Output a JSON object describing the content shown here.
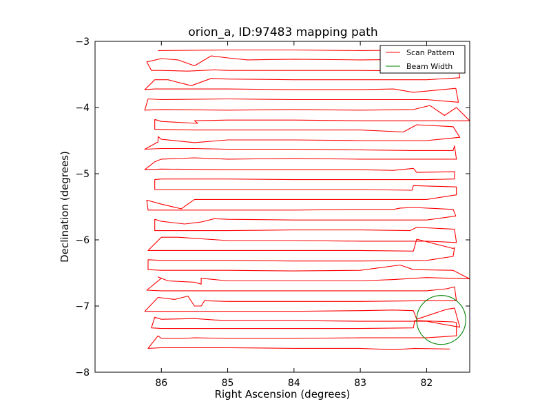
{
  "chart_data": {
    "type": "line",
    "title": "orion_a, ID:97483 mapping path",
    "xlabel": "Right Ascension (degrees)",
    "ylabel": "Declination (degrees)",
    "xlim": [
      87.0,
      81.35
    ],
    "ylim": [
      -8.0,
      -3.0
    ],
    "x_inverted": true,
    "xticks": [
      86,
      85,
      84,
      83,
      82
    ],
    "yticks": [
      -3,
      -4,
      -5,
      -6,
      -7,
      -8
    ],
    "xtick_labels": [
      "86",
      "85",
      "84",
      "83",
      "82"
    ],
    "ytick_labels": [
      "−3",
      "−4",
      "−5",
      "−6",
      "−7",
      "−8"
    ],
    "grid": false,
    "legend": {
      "location": "top-right",
      "entries": [
        {
          "label": "Scan Pattern",
          "color": "#ff0000"
        },
        {
          "label": "Beam Width",
          "color": "#008000"
        }
      ]
    },
    "series": [
      {
        "name": "Scan Pattern",
        "color": "#ff0000",
        "points": [
          [
            86.05,
            -3.14
          ],
          [
            85.0,
            -3.13
          ],
          [
            84.0,
            -3.13
          ],
          [
            83.0,
            -3.14
          ],
          [
            82.0,
            -3.13
          ],
          [
            81.6,
            -3.12
          ],
          [
            81.55,
            -3.2
          ],
          [
            82.0,
            -3.27
          ],
          [
            83.0,
            -3.28
          ],
          [
            84.0,
            -3.27
          ],
          [
            84.7,
            -3.28
          ],
          [
            85.0,
            -3.25
          ],
          [
            85.25,
            -3.22
          ],
          [
            85.5,
            -3.37
          ],
          [
            85.75,
            -3.28
          ],
          [
            86.0,
            -3.26
          ],
          [
            86.22,
            -3.31
          ],
          [
            86.15,
            -3.44
          ],
          [
            86.0,
            -3.44
          ],
          [
            85.6,
            -3.45
          ],
          [
            85.2,
            -3.43
          ],
          [
            85.0,
            -3.44
          ],
          [
            84.0,
            -3.44
          ],
          [
            83.0,
            -3.44
          ],
          [
            82.0,
            -3.45
          ],
          [
            81.52,
            -3.43
          ],
          [
            81.5,
            -3.55
          ],
          [
            82.0,
            -3.58
          ],
          [
            83.0,
            -3.58
          ],
          [
            84.0,
            -3.58
          ],
          [
            85.0,
            -3.57
          ],
          [
            85.25,
            -3.56
          ],
          [
            85.55,
            -3.67
          ],
          [
            85.9,
            -3.58
          ],
          [
            86.1,
            -3.58
          ],
          [
            86.25,
            -3.73
          ],
          [
            86.1,
            -3.72
          ],
          [
            85.0,
            -3.72
          ],
          [
            84.0,
            -3.73
          ],
          [
            83.0,
            -3.73
          ],
          [
            82.5,
            -3.72
          ],
          [
            82.2,
            -3.77
          ],
          [
            81.56,
            -3.71
          ],
          [
            81.52,
            -3.92
          ],
          [
            82.0,
            -3.88
          ],
          [
            83.0,
            -3.88
          ],
          [
            84.0,
            -3.88
          ],
          [
            85.0,
            -3.87
          ],
          [
            86.0,
            -3.88
          ],
          [
            86.2,
            -3.87
          ],
          [
            86.25,
            -4.04
          ],
          [
            86.0,
            -4.03
          ],
          [
            85.0,
            -4.04
          ],
          [
            84.0,
            -4.03
          ],
          [
            83.0,
            -4.04
          ],
          [
            82.2,
            -4.03
          ],
          [
            81.95,
            -3.97
          ],
          [
            81.73,
            -4.12
          ],
          [
            81.55,
            -4.0
          ],
          [
            81.35,
            -4.2
          ],
          [
            82.0,
            -4.2
          ],
          [
            83.0,
            -4.2
          ],
          [
            84.0,
            -4.19
          ],
          [
            85.0,
            -4.19
          ],
          [
            85.5,
            -4.2
          ],
          [
            85.45,
            -4.24
          ],
          [
            86.0,
            -4.21
          ],
          [
            86.1,
            -4.18
          ],
          [
            86.1,
            -4.33
          ],
          [
            85.5,
            -4.34
          ],
          [
            84.0,
            -4.34
          ],
          [
            83.0,
            -4.34
          ],
          [
            82.35,
            -4.37
          ],
          [
            82.15,
            -4.26
          ],
          [
            81.6,
            -4.29
          ],
          [
            81.5,
            -4.45
          ],
          [
            82.0,
            -4.5
          ],
          [
            83.0,
            -4.5
          ],
          [
            84.0,
            -4.49
          ],
          [
            85.0,
            -4.49
          ],
          [
            85.5,
            -4.53
          ],
          [
            86.0,
            -4.48
          ],
          [
            86.05,
            -4.44
          ],
          [
            86.05,
            -4.52
          ],
          [
            86.25,
            -4.63
          ],
          [
            86.0,
            -4.62
          ],
          [
            85.5,
            -4.62
          ],
          [
            85.0,
            -4.63
          ],
          [
            84.0,
            -4.63
          ],
          [
            83.0,
            -4.64
          ],
          [
            82.2,
            -4.65
          ],
          [
            81.6,
            -4.65
          ],
          [
            81.58,
            -4.58
          ],
          [
            81.55,
            -4.78
          ],
          [
            82.0,
            -4.78
          ],
          [
            83.0,
            -4.78
          ],
          [
            84.0,
            -4.77
          ],
          [
            85.0,
            -4.78
          ],
          [
            85.5,
            -4.76
          ],
          [
            86.0,
            -4.78
          ],
          [
            86.1,
            -4.82
          ],
          [
            86.25,
            -4.94
          ],
          [
            86.0,
            -4.93
          ],
          [
            85.0,
            -4.94
          ],
          [
            84.0,
            -4.94
          ],
          [
            83.0,
            -4.94
          ],
          [
            82.5,
            -4.95
          ],
          [
            82.2,
            -4.92
          ],
          [
            82.15,
            -4.98
          ],
          [
            81.58,
            -4.97
          ],
          [
            81.58,
            -5.08
          ],
          [
            82.0,
            -5.09
          ],
          [
            83.0,
            -5.09
          ],
          [
            84.0,
            -5.09
          ],
          [
            85.0,
            -5.08
          ],
          [
            86.0,
            -5.08
          ],
          [
            86.1,
            -5.09
          ],
          [
            86.1,
            -5.24
          ],
          [
            86.0,
            -5.24
          ],
          [
            85.0,
            -5.24
          ],
          [
            84.0,
            -5.24
          ],
          [
            83.0,
            -5.24
          ],
          [
            82.22,
            -5.25
          ],
          [
            82.2,
            -5.18
          ],
          [
            81.55,
            -5.2
          ],
          [
            81.55,
            -5.32
          ],
          [
            82.0,
            -5.39
          ],
          [
            83.0,
            -5.39
          ],
          [
            84.0,
            -5.39
          ],
          [
            85.0,
            -5.39
          ],
          [
            85.5,
            -5.39
          ],
          [
            85.7,
            -5.53
          ],
          [
            86.0,
            -5.46
          ],
          [
            86.22,
            -5.4
          ],
          [
            86.2,
            -5.55
          ],
          [
            86.0,
            -5.55
          ],
          [
            85.0,
            -5.55
          ],
          [
            84.0,
            -5.55
          ],
          [
            83.0,
            -5.54
          ],
          [
            82.5,
            -5.54
          ],
          [
            82.4,
            -5.52
          ],
          [
            82.2,
            -5.51
          ],
          [
            81.6,
            -5.54
          ],
          [
            81.56,
            -5.64
          ],
          [
            82.0,
            -5.7
          ],
          [
            83.0,
            -5.7
          ],
          [
            84.0,
            -5.7
          ],
          [
            85.0,
            -5.69
          ],
          [
            85.2,
            -5.68
          ],
          [
            85.4,
            -5.73
          ],
          [
            85.65,
            -5.76
          ],
          [
            86.0,
            -5.72
          ],
          [
            86.1,
            -5.69
          ],
          [
            86.1,
            -5.86
          ],
          [
            86.0,
            -5.86
          ],
          [
            85.0,
            -5.86
          ],
          [
            84.0,
            -5.85
          ],
          [
            83.0,
            -5.85
          ],
          [
            82.25,
            -5.86
          ],
          [
            82.15,
            -5.81
          ],
          [
            81.58,
            -5.84
          ],
          [
            81.55,
            -6.04
          ],
          [
            82.0,
            -6.02
          ],
          [
            83.0,
            -6.02
          ],
          [
            84.0,
            -6.01
          ],
          [
            85.0,
            -6.01
          ],
          [
            85.75,
            -5.96
          ],
          [
            86.0,
            -5.96
          ],
          [
            86.2,
            -6.16
          ],
          [
            86.0,
            -6.16
          ],
          [
            85.0,
            -6.16
          ],
          [
            84.0,
            -6.16
          ],
          [
            83.0,
            -6.16
          ],
          [
            82.2,
            -6.17
          ],
          [
            82.15,
            -5.99
          ],
          [
            81.6,
            -6.13
          ],
          [
            81.58,
            -6.12
          ],
          [
            81.6,
            -6.25
          ],
          [
            82.0,
            -6.31
          ],
          [
            83.0,
            -6.32
          ],
          [
            84.0,
            -6.32
          ],
          [
            85.0,
            -6.31
          ],
          [
            86.0,
            -6.31
          ],
          [
            86.2,
            -6.3
          ],
          [
            86.2,
            -6.45
          ],
          [
            86.0,
            -6.46
          ],
          [
            85.0,
            -6.46
          ],
          [
            84.0,
            -6.47
          ],
          [
            83.0,
            -6.46
          ],
          [
            82.4,
            -6.38
          ],
          [
            82.2,
            -6.45
          ],
          [
            81.6,
            -6.46
          ],
          [
            81.35,
            -6.59
          ],
          [
            82.0,
            -6.57
          ],
          [
            82.5,
            -6.6
          ],
          [
            83.0,
            -6.62
          ],
          [
            84.0,
            -6.62
          ],
          [
            85.0,
            -6.62
          ],
          [
            85.4,
            -6.58
          ],
          [
            85.4,
            -6.67
          ],
          [
            85.5,
            -6.64
          ],
          [
            85.9,
            -6.62
          ],
          [
            86.05,
            -6.56
          ],
          [
            86.0,
            -6.58
          ],
          [
            86.22,
            -6.76
          ],
          [
            86.0,
            -6.77
          ],
          [
            85.0,
            -6.77
          ],
          [
            84.0,
            -6.77
          ],
          [
            83.0,
            -6.77
          ],
          [
            82.0,
            -6.77
          ],
          [
            81.7,
            -6.74
          ],
          [
            81.58,
            -6.71
          ],
          [
            81.55,
            -6.92
          ],
          [
            82.0,
            -6.92
          ],
          [
            83.0,
            -6.93
          ],
          [
            84.0,
            -6.93
          ],
          [
            85.0,
            -6.93
          ],
          [
            85.35,
            -6.92
          ],
          [
            85.4,
            -7.0
          ],
          [
            85.5,
            -7.0
          ],
          [
            85.6,
            -6.85
          ],
          [
            85.8,
            -6.9
          ],
          [
            86.05,
            -6.87
          ],
          [
            86.25,
            -7.08
          ],
          [
            86.0,
            -7.08
          ],
          [
            85.0,
            -7.08
          ],
          [
            84.0,
            -7.08
          ],
          [
            83.0,
            -7.07
          ],
          [
            82.5,
            -7.06
          ],
          [
            82.2,
            -7.07
          ],
          [
            82.15,
            -7.2
          ],
          [
            81.7,
            -7.05
          ],
          [
            81.58,
            -7.03
          ],
          [
            81.5,
            -7.32
          ],
          [
            82.0,
            -7.23
          ],
          [
            83.0,
            -7.23
          ],
          [
            84.0,
            -7.22
          ],
          [
            85.0,
            -7.22
          ],
          [
            85.2,
            -7.21
          ],
          [
            85.5,
            -7.19
          ],
          [
            86.0,
            -7.2
          ],
          [
            86.1,
            -7.17
          ],
          [
            86.15,
            -7.33
          ],
          [
            86.0,
            -7.34
          ],
          [
            85.0,
            -7.34
          ],
          [
            84.0,
            -7.34
          ],
          [
            83.0,
            -7.34
          ],
          [
            82.2,
            -7.33
          ],
          [
            82.18,
            -7.22
          ],
          [
            81.6,
            -7.24
          ],
          [
            81.55,
            -7.25
          ],
          [
            81.55,
            -7.45
          ],
          [
            82.0,
            -7.48
          ],
          [
            83.0,
            -7.48
          ],
          [
            84.0,
            -7.49
          ],
          [
            85.0,
            -7.49
          ],
          [
            85.5,
            -7.48
          ],
          [
            85.65,
            -7.49
          ],
          [
            86.0,
            -7.49
          ],
          [
            86.05,
            -7.45
          ],
          [
            86.2,
            -7.64
          ],
          [
            86.0,
            -7.63
          ],
          [
            85.0,
            -7.63
          ],
          [
            84.0,
            -7.64
          ],
          [
            83.0,
            -7.64
          ],
          [
            82.5,
            -7.66
          ],
          [
            82.18,
            -7.64
          ],
          [
            81.65,
            -7.65
          ]
        ]
      },
      {
        "name": "Beam Width",
        "shape": "circle",
        "color": "#008000",
        "center": [
          81.78,
          -7.21
        ],
        "radius_deg": 0.37
      }
    ]
  }
}
